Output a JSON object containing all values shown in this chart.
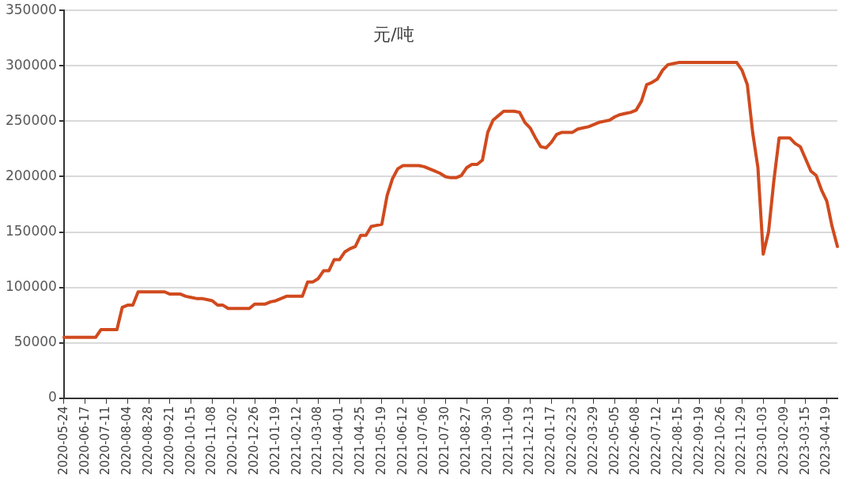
{
  "chart_data": {
    "type": "line",
    "categories": [
      "2020-05-24",
      null,
      null,
      null,
      "2020-06-17",
      null,
      null,
      null,
      "2020-07-11",
      null,
      null,
      null,
      "2020-08-04",
      null,
      null,
      null,
      "2020-08-28",
      null,
      null,
      null,
      "2020-09-21",
      null,
      null,
      null,
      "2020-10-15",
      null,
      null,
      null,
      "2020-11-08",
      null,
      null,
      null,
      "2020-12-02",
      null,
      null,
      null,
      "2020-12-26",
      null,
      null,
      null,
      "2021-01-19",
      null,
      null,
      null,
      "2021-02-12",
      null,
      null,
      null,
      "2021-03-08",
      null,
      null,
      null,
      "2021-04-01",
      null,
      null,
      null,
      "2021-04-25",
      null,
      null,
      null,
      "2021-05-19",
      null,
      null,
      null,
      "2021-06-12",
      null,
      null,
      null,
      "2021-07-06",
      null,
      null,
      null,
      "2021-07-30",
      null,
      null,
      null,
      "2021-08-27",
      null,
      null,
      null,
      "2021-09-30",
      null,
      null,
      null,
      "2021-11-09",
      null,
      null,
      null,
      "2021-12-13",
      null,
      null,
      null,
      "2022-01-17",
      null,
      null,
      null,
      "2022-02-23",
      null,
      null,
      null,
      "2022-03-29",
      null,
      null,
      null,
      "2022-05-05",
      null,
      null,
      null,
      "2022-06-08",
      null,
      null,
      null,
      "2022-07-12",
      null,
      null,
      null,
      "2022-08-15",
      null,
      null,
      null,
      "2022-09-19",
      null,
      null,
      null,
      "2022-10-26",
      null,
      null,
      null,
      "2022-11-29",
      null,
      null,
      null,
      "2023-01-03",
      null,
      null,
      null,
      "2023-02-09",
      null,
      null,
      null,
      "2023-03-15",
      null,
      null,
      null,
      "2023-04-19",
      null,
      null
    ],
    "series": [
      {
        "color": "#d04a1e",
        "values": [
          55000,
          55000,
          55000,
          55000,
          55000,
          55000,
          55000,
          62000,
          62000,
          62000,
          62000,
          82000,
          84000,
          84000,
          96000,
          96000,
          96000,
          96000,
          96000,
          96000,
          94000,
          94000,
          94000,
          92000,
          91000,
          90000,
          90000,
          89000,
          88000,
          84000,
          84000,
          81000,
          81000,
          81000,
          81000,
          81000,
          85000,
          85000,
          85000,
          87000,
          88000,
          90000,
          92000,
          92000,
          92000,
          92000,
          105000,
          105000,
          108000,
          115000,
          115000,
          125000,
          125000,
          132000,
          135000,
          137000,
          147000,
          147000,
          155000,
          156000,
          157000,
          183000,
          198000,
          207000,
          210000,
          210000,
          210000,
          210000,
          209000,
          207000,
          205000,
          203000,
          200000,
          199000,
          199000,
          201000,
          208000,
          211000,
          211000,
          215000,
          240000,
          251000,
          255000,
          259000,
          259000,
          259000,
          258000,
          249000,
          244000,
          235000,
          227000,
          226000,
          231000,
          238000,
          240000,
          240000,
          240000,
          243000,
          244000,
          245000,
          247000,
          249000,
          250000,
          251000,
          254000,
          256000,
          257000,
          258000,
          260000,
          268000,
          283000,
          285000,
          288000,
          296000,
          301000,
          302000,
          303000,
          303000,
          303000,
          303000,
          303000,
          303000,
          303000,
          303000,
          303000,
          303000,
          303000,
          303000,
          296000,
          283000,
          240000,
          208000,
          130000,
          150000,
          196000,
          235000,
          235000,
          235000,
          230000,
          227000,
          216000,
          205000,
          201000,
          188000,
          178000,
          155000,
          137000
        ]
      }
    ],
    "ylim": [
      0,
      350000
    ],
    "yticks": [
      0,
      50000,
      100000,
      150000,
      200000,
      250000,
      300000,
      350000
    ],
    "grid": "y",
    "legend": false,
    "marker": "none",
    "line_style": "solid",
    "annotations": [
      "元/吨"
    ]
  }
}
